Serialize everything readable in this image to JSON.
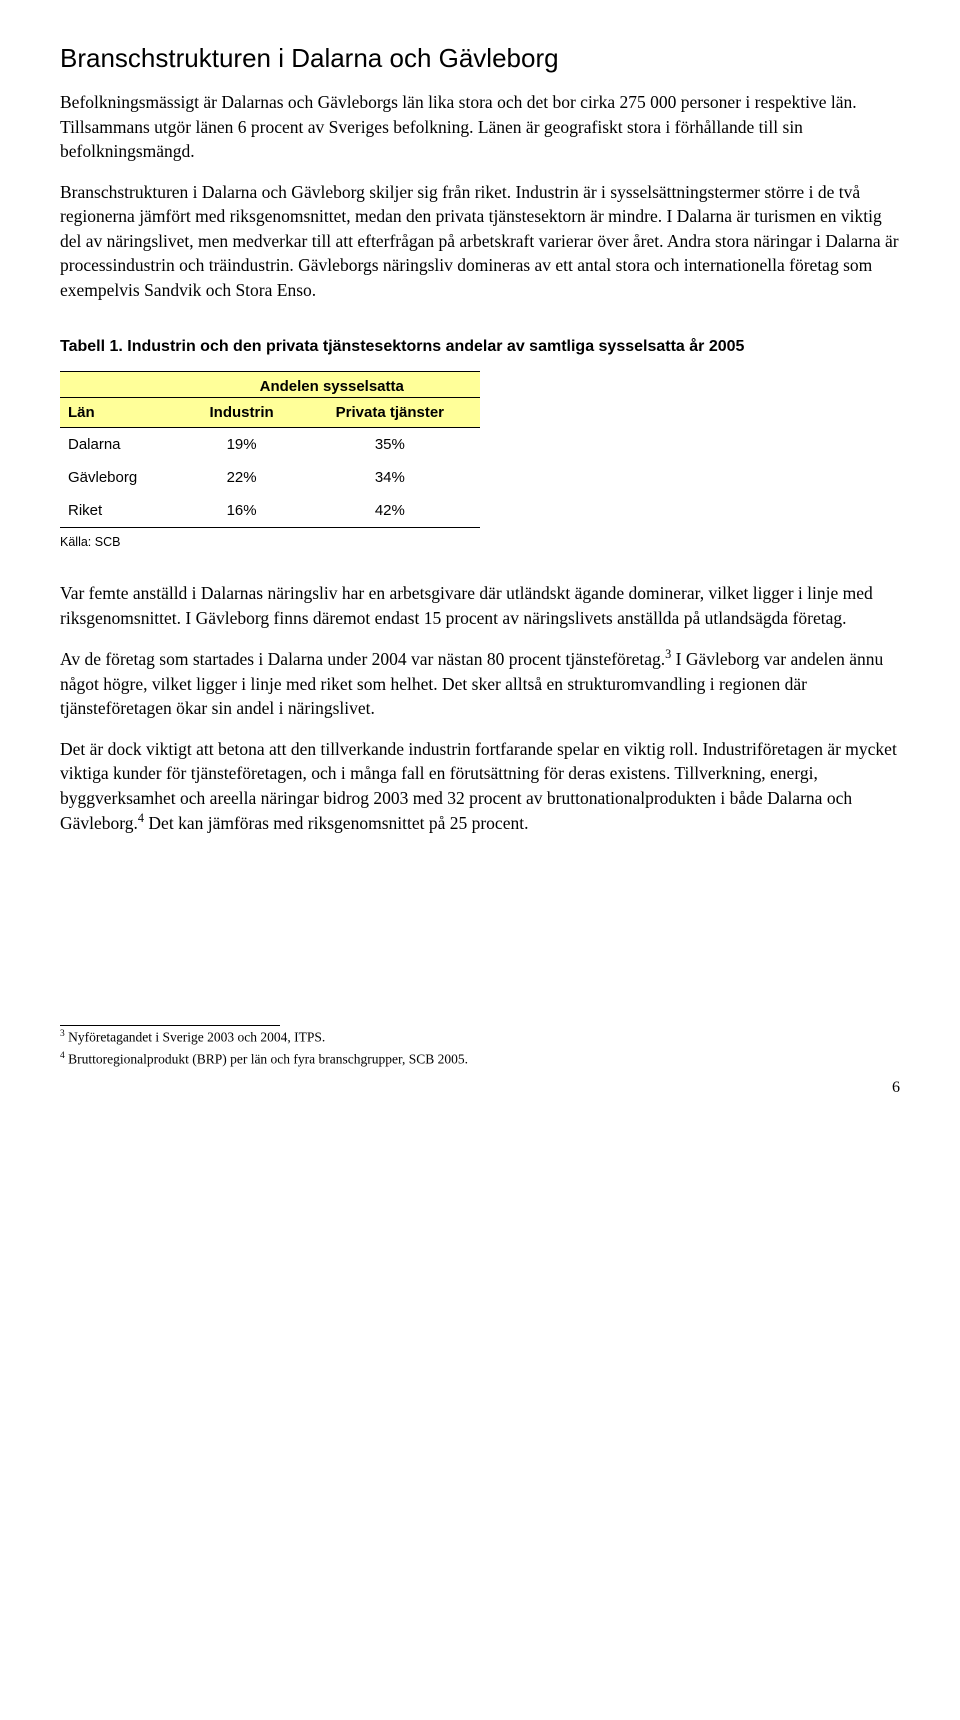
{
  "heading": "Branschstrukturen i Dalarna och Gävleborg",
  "para1": "Befolkningsmässigt är Dalarnas och Gävleborgs län lika stora och det bor cirka 275 000 personer i respektive län. Tillsammans utgör länen 6 procent av Sveriges befolkning. Länen är geografiskt stora i förhållande till sin befolkningsmängd.",
  "para2_a": "Branschstrukturen i Dalarna och Gävleborg skiljer sig från riket. Industrin är i sysselsättningstermer större i de två regionerna jämfört med riksgenomsnittet, medan den privata tjänstesektorn är mindre. I Dalarna är turismen en viktig del av näringslivet, men medverkar till att efterfrågan på arbetskraft varierar över året. Andra stora näringar i Dalarna är processindustrin och träindustrin. Gävleborgs näringsliv domineras av ett antal stora och internationella företag som exempelvis Sandvik och Stora Enso.",
  "table": {
    "caption": "Tabell 1. Industrin och den privata tjänstesektorns andelar av samtliga sysselsatta år 2005",
    "header_span": "Andelen sysselsatta",
    "column_labels": {
      "lan": "Län",
      "industrin": "Industrin",
      "privata": "Privata tjänster"
    },
    "rows": [
      {
        "lan": "Dalarna",
        "industrin": "19%",
        "privata": "35%"
      },
      {
        "lan": "Gävleborg",
        "industrin": "22%",
        "privata": "34%"
      },
      {
        "lan": "Riket",
        "industrin": "16%",
        "privata": "42%"
      }
    ],
    "source": "Källa: SCB",
    "header_bg": "#ffff99"
  },
  "para3": "Var femte anställd i Dalarnas näringsliv har en arbetsgivare där utländskt ägande dominerar, vilket ligger i linje med riksgenomsnittet. I Gävleborg finns däremot endast 15 procent av näringslivets anställda på utlandsägda företag.",
  "para4_a": "Av de företag som startades i Dalarna under 2004 var nästan 80 procent tjänsteföretag.",
  "para4_sup1": "3",
  "para4_b": " I Gävleborg var andelen ännu något högre, vilket ligger i linje med riket som helhet. Det sker alltså en strukturomvandling i regionen där tjänsteföretagen ökar sin andel i näringslivet.",
  "para5_a": "Det är dock viktigt att betona att den tillverkande industrin fortfarande spelar en viktig roll. Industriföretagen är mycket viktiga kunder för tjänsteföretagen, och i många fall en förutsättning för deras existens. Tillverkning, energi, byggverksamhet och areella näringar bidrog 2003 med 32 procent av bruttonationalprodukten i både Dalarna och Gävleborg.",
  "para5_sup": "4",
  "para5_b": " Det kan jämföras med riksgenomsnittet på 25 procent.",
  "footnotes": {
    "fn3_num": "3",
    "fn3_text": " Nyföretagandet i Sverige 2003 och 2004, ITPS.",
    "fn4_num": "4",
    "fn4_text": " Bruttoregionalprodukt (BRP) per län och fyra branschgrupper, SCB 2005."
  },
  "page_number": "6"
}
